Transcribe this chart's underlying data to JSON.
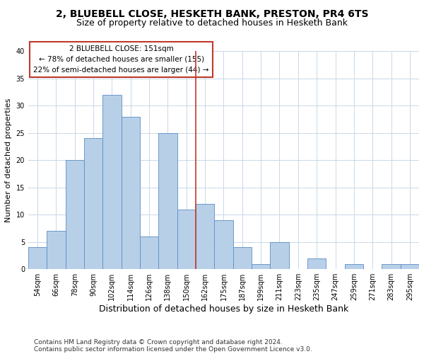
{
  "title1": "2, BLUEBELL CLOSE, HESKETH BANK, PRESTON, PR4 6TS",
  "title2": "Size of property relative to detached houses in Hesketh Bank",
  "xlabel": "Distribution of detached houses by size in Hesketh Bank",
  "ylabel": "Number of detached properties",
  "categories": [
    "54sqm",
    "66sqm",
    "78sqm",
    "90sqm",
    "102sqm",
    "114sqm",
    "126sqm",
    "138sqm",
    "150sqm",
    "162sqm",
    "175sqm",
    "187sqm",
    "199sqm",
    "211sqm",
    "223sqm",
    "235sqm",
    "247sqm",
    "259sqm",
    "271sqm",
    "283sqm",
    "295sqm"
  ],
  "values": [
    4,
    7,
    20,
    24,
    32,
    28,
    6,
    25,
    11,
    12,
    9,
    4,
    1,
    5,
    0,
    2,
    0,
    1,
    0,
    1,
    1
  ],
  "bar_color": "#b8cfe8",
  "bar_edge_color": "#5b8ec4",
  "vline_index": 8,
  "annotation_text_line1": "2 BLUEBELL CLOSE: 151sqm",
  "annotation_text_line2": "← 78% of detached houses are smaller (155)",
  "annotation_text_line3": "22% of semi-detached houses are larger (44) →",
  "vline_color": "#c0392b",
  "box_edge_color": "#c0392b",
  "footnote1": "Contains HM Land Registry data © Crown copyright and database right 2024.",
  "footnote2": "Contains public sector information licensed under the Open Government Licence v3.0.",
  "ylim": [
    0,
    40
  ],
  "yticks": [
    0,
    5,
    10,
    15,
    20,
    25,
    30,
    35,
    40
  ],
  "bg_color": "#ffffff",
  "grid_color": "#c8d8e8",
  "title1_fontsize": 10,
  "title2_fontsize": 9,
  "xlabel_fontsize": 9,
  "ylabel_fontsize": 8,
  "tick_fontsize": 7,
  "annotation_fontsize": 7.5,
  "footnote_fontsize": 6.5
}
